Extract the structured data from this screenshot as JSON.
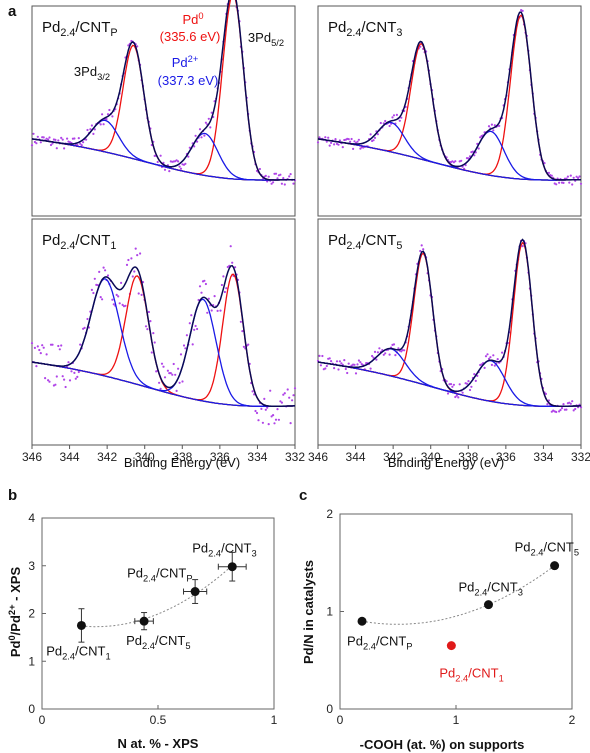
{
  "panel_a_letter": "a",
  "panel_b_letter": "b",
  "panel_c_letter": "c",
  "colors": {
    "envelope": "#0a0a55",
    "pd0": "#ee1111",
    "pd2": "#1a1ae6",
    "background": "#2a9a1a",
    "raw_points": "#b044e8",
    "highlight": "#e01a1a"
  },
  "chart_data": [
    {
      "type": "line",
      "id": "xps_cntp",
      "panel_label": "Pd2.4/CNTP",
      "x_range": [
        346,
        332
      ],
      "noise": 0.03,
      "peaks": [
        {
          "center": 335.3,
          "height": 0.88,
          "width": 0.55,
          "state": "Pd0"
        },
        {
          "center": 340.6,
          "height": 0.54,
          "width": 0.55,
          "state": "Pd0"
        },
        {
          "center": 336.8,
          "height": 0.2,
          "width": 0.7,
          "state": "Pd2+"
        },
        {
          "center": 342.1,
          "height": 0.15,
          "width": 0.7,
          "state": "Pd2+"
        }
      ],
      "annotations": {
        "pd3_2": "3Pd3/2",
        "pd5_2": "3Pd5/2",
        "pd0": "Pd0",
        "pd0_value": "(335.6 eV)",
        "pd2": "Pd2+",
        "pd2_value": "(337.3 eV)"
      }
    },
    {
      "type": "line",
      "id": "xps_cnt3",
      "panel_label": "Pd2.4/CNT3",
      "x_range": [
        346,
        332
      ],
      "noise": 0.025,
      "peaks": [
        {
          "center": 335.2,
          "height": 0.78,
          "width": 0.55,
          "state": "Pd0"
        },
        {
          "center": 340.5,
          "height": 0.55,
          "width": 0.55,
          "state": "Pd0"
        },
        {
          "center": 336.8,
          "height": 0.21,
          "width": 0.7,
          "state": "Pd2+"
        },
        {
          "center": 342.1,
          "height": 0.14,
          "width": 0.7,
          "state": "Pd2+"
        }
      ]
    },
    {
      "type": "line",
      "id": "xps_cnt1",
      "panel_label": "Pd2.4/CNT1",
      "x_range": [
        346,
        332
      ],
      "noise": 0.1,
      "peaks": [
        {
          "center": 335.3,
          "height": 0.58,
          "width": 0.55,
          "state": "Pd0"
        },
        {
          "center": 340.4,
          "height": 0.48,
          "width": 0.6,
          "state": "Pd0"
        },
        {
          "center": 336.9,
          "height": 0.45,
          "width": 0.7,
          "state": "Pd2+"
        },
        {
          "center": 342.1,
          "height": 0.43,
          "width": 0.75,
          "state": "Pd2+"
        }
      ]
    },
    {
      "type": "line",
      "id": "xps_cnt5",
      "panel_label": "Pd2.4/CNT5",
      "x_range": [
        346,
        332
      ],
      "noise": 0.03,
      "peaks": [
        {
          "center": 335.1,
          "height": 0.72,
          "width": 0.5,
          "state": "Pd0"
        },
        {
          "center": 340.4,
          "height": 0.58,
          "width": 0.5,
          "state": "Pd0"
        },
        {
          "center": 336.8,
          "height": 0.18,
          "width": 0.75,
          "state": "Pd2+"
        },
        {
          "center": 342.1,
          "height": 0.12,
          "width": 0.75,
          "state": "Pd2+"
        }
      ]
    }
  ],
  "xps_axis": {
    "ticks": [
      346,
      344,
      342,
      340,
      338,
      336,
      334,
      332
    ],
    "xlabel": "Binding Energy (eV)"
  },
  "chart_b": {
    "type": "scatter",
    "xlabel": "N at. % -  XPS",
    "ylabel": "Pd0/Pd2+ - XPS",
    "xlim": [
      0,
      1
    ],
    "ylim": [
      0,
      4
    ],
    "xticks": [
      0,
      0.5,
      1
    ],
    "yticks": [
      0,
      1,
      2,
      3,
      4
    ],
    "points": [
      {
        "label": "Pd2.4/CNT1",
        "x": 0.17,
        "y": 1.75,
        "xerr": 0.0,
        "yerr": 0.35
      },
      {
        "label": "Pd2.4/CNT5",
        "x": 0.44,
        "y": 1.84,
        "xerr": 0.04,
        "yerr": 0.18
      },
      {
        "label": "Pd2.4/CNTP",
        "x": 0.66,
        "y": 2.46,
        "xerr": 0.05,
        "yerr": 0.25
      },
      {
        "label": "Pd2.4/CNT3",
        "x": 0.82,
        "y": 2.98,
        "xerr": 0.06,
        "yerr": 0.3
      }
    ],
    "trend": "quadratic"
  },
  "chart_c": {
    "type": "scatter",
    "xlabel": "-COOH (at. %) on supports",
    "ylabel": "Pd/N in catalysts",
    "xlim": [
      0,
      2
    ],
    "ylim": [
      0,
      2
    ],
    "xticks": [
      0,
      1,
      2
    ],
    "yticks": [
      0,
      1,
      2
    ],
    "points": [
      {
        "label": "Pd2.4/CNTP",
        "x": 0.19,
        "y": 0.9,
        "highlight": false
      },
      {
        "label": "Pd2.4/CNT3",
        "x": 1.28,
        "y": 1.07,
        "highlight": false
      },
      {
        "label": "Pd2.4/CNT5",
        "x": 1.85,
        "y": 1.47,
        "highlight": false
      },
      {
        "label": "Pd2.4/CNT1",
        "x": 0.96,
        "y": 0.65,
        "highlight": true
      }
    ],
    "trend": "quadratic"
  }
}
